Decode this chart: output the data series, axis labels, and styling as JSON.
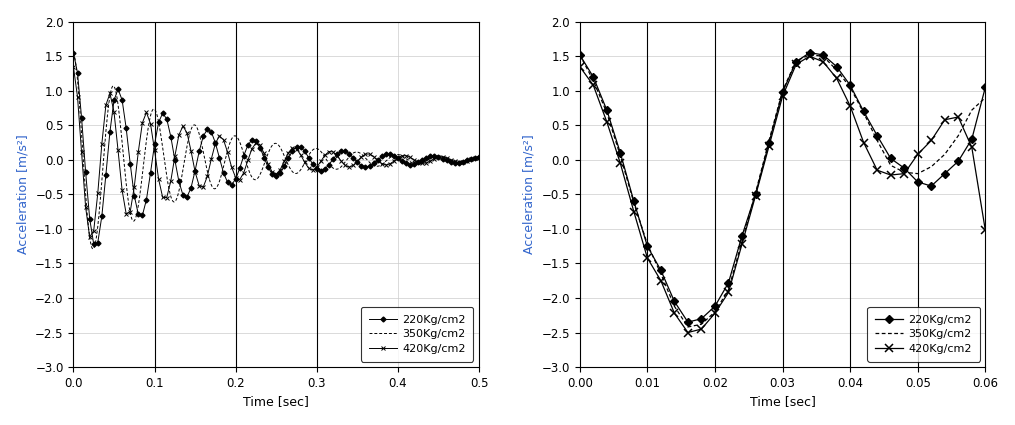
{
  "left_plot": {
    "xlim": [
      0,
      0.5
    ],
    "ylim": [
      -3,
      2
    ],
    "xticks": [
      0,
      0.1,
      0.2,
      0.3,
      0.4,
      0.5
    ],
    "yticks": [
      -3,
      -2.5,
      -2,
      -1.5,
      -1,
      -0.5,
      0,
      0.5,
      1,
      1.5,
      2
    ],
    "xlabel": "Time [sec]",
    "ylabel": "Acceleration [m/s²]",
    "vlines": [
      0.1,
      0.2,
      0.3
    ]
  },
  "right_plot": {
    "xlim": [
      0.0,
      0.06
    ],
    "ylim": [
      -3,
      2
    ],
    "xticks": [
      0.0,
      0.01,
      0.02,
      0.03,
      0.04,
      0.05,
      0.06
    ],
    "yticks": [
      -3,
      -2.5,
      -2,
      -1.5,
      -1,
      -0.5,
      0,
      0.5,
      1,
      1.5,
      2
    ],
    "xlabel": "Time [sec]",
    "ylabel": "Acceleration [m/s²]",
    "vlines": [
      0.01,
      0.02,
      0.03,
      0.04,
      0.05
    ]
  },
  "right_220_x": [
    0.0,
    0.002,
    0.004,
    0.006,
    0.008,
    0.01,
    0.012,
    0.014,
    0.016,
    0.018,
    0.02,
    0.022,
    0.024,
    0.026,
    0.028,
    0.03,
    0.032,
    0.034,
    0.036,
    0.038,
    0.04,
    0.042,
    0.044,
    0.046,
    0.048,
    0.05,
    0.052,
    0.054,
    0.056,
    0.058,
    0.06
  ],
  "right_220_y": [
    1.52,
    1.2,
    0.72,
    0.1,
    -0.6,
    -1.25,
    -1.6,
    -2.05,
    -2.35,
    -2.3,
    -2.12,
    -1.78,
    -1.1,
    -0.5,
    0.25,
    0.98,
    1.42,
    1.55,
    1.52,
    1.35,
    1.08,
    0.7,
    0.35,
    0.02,
    -0.12,
    -0.32,
    -0.38,
    -0.2,
    -0.02,
    0.3,
    1.05
  ],
  "right_350_x": [
    0.0,
    0.002,
    0.004,
    0.006,
    0.008,
    0.01,
    0.012,
    0.014,
    0.016,
    0.018,
    0.02,
    0.022,
    0.024,
    0.026,
    0.028,
    0.03,
    0.032,
    0.034,
    0.036,
    0.038,
    0.04,
    0.042,
    0.044,
    0.046,
    0.048,
    0.05,
    0.052,
    0.054,
    0.056,
    0.058,
    0.06
  ],
  "right_350_y": [
    1.52,
    1.15,
    0.68,
    0.06,
    -0.62,
    -1.22,
    -1.65,
    -2.12,
    -2.42,
    -2.38,
    -2.2,
    -1.88,
    -1.18,
    -0.48,
    0.28,
    1.0,
    1.43,
    1.52,
    1.5,
    1.3,
    1.05,
    0.68,
    0.28,
    -0.08,
    -0.18,
    -0.2,
    -0.1,
    0.08,
    0.35,
    0.72,
    0.9
  ],
  "right_420_x": [
    0.0,
    0.002,
    0.004,
    0.006,
    0.008,
    0.01,
    0.012,
    0.014,
    0.016,
    0.018,
    0.02,
    0.022,
    0.024,
    0.026,
    0.028,
    0.03,
    0.032,
    0.034,
    0.036,
    0.038,
    0.04,
    0.042,
    0.044,
    0.046,
    0.048,
    0.05,
    0.052,
    0.054,
    0.056,
    0.058,
    0.06
  ],
  "right_420_y": [
    1.35,
    1.08,
    0.55,
    -0.05,
    -0.75,
    -1.42,
    -1.75,
    -2.22,
    -2.5,
    -2.45,
    -2.22,
    -1.92,
    -1.22,
    -0.52,
    0.2,
    0.92,
    1.38,
    1.5,
    1.42,
    1.18,
    0.78,
    0.25,
    -0.15,
    -0.22,
    -0.2,
    0.08,
    0.28,
    0.58,
    0.62,
    0.18,
    -1.02
  ],
  "line_color": "#000000",
  "bg_color": "#ffffff",
  "label_color": "#3366cc",
  "ylabel_left": "Acceleration [m/s²]",
  "ylabel_right": "Acceleration [m/s²]",
  "xlabel": "Time [sec]",
  "legend_entries": [
    "220Kg/cm2",
    "350Kg/cm2",
    "420Kg/cm2"
  ],
  "left_osc": {
    "A1": 1.55,
    "omega1": 113.1,
    "gamma1": 7.5,
    "A2": 1.55,
    "omega2": 125.7,
    "gamma2": 7.5,
    "phase2": 0.05,
    "A3": 1.35,
    "omega3": 138.2,
    "gamma3": 7.5,
    "phase3": 0.1,
    "marker_dt": 0.005
  }
}
